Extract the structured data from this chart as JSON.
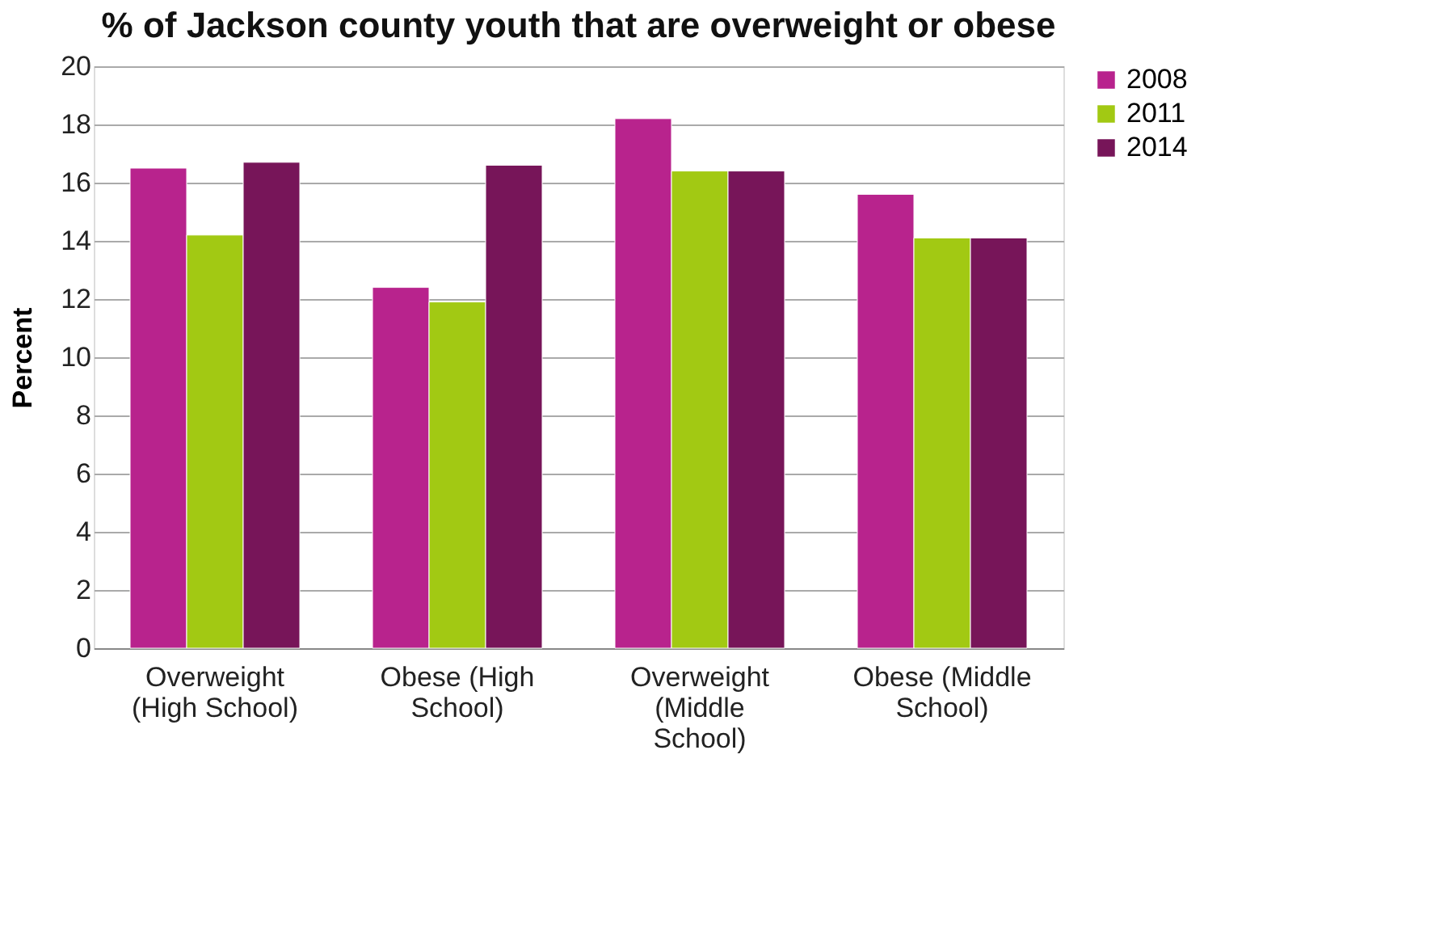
{
  "chart_data": {
    "type": "bar",
    "title": "% of Jackson county youth that are overweight or obese",
    "ylabel": "Percent",
    "categories": [
      "Overweight (High School)",
      "Obese (High School)",
      "Overweight (Middle School)",
      "Obese (Middle School)"
    ],
    "series": [
      {
        "name": "2008",
        "color": "#b8238d",
        "values": [
          16.5,
          12.4,
          18.2,
          15.6
        ]
      },
      {
        "name": "2011",
        "color": "#a2c913",
        "values": [
          14.2,
          11.9,
          16.4,
          14.1
        ]
      },
      {
        "name": "2014",
        "color": "#771559",
        "values": [
          16.7,
          16.6,
          16.4,
          14.1
        ]
      }
    ],
    "ylim": [
      0,
      20
    ],
    "yticks": [
      0,
      2,
      4,
      6,
      8,
      10,
      12,
      14,
      16,
      18,
      20
    ],
    "grid": "y",
    "legend": "right"
  }
}
